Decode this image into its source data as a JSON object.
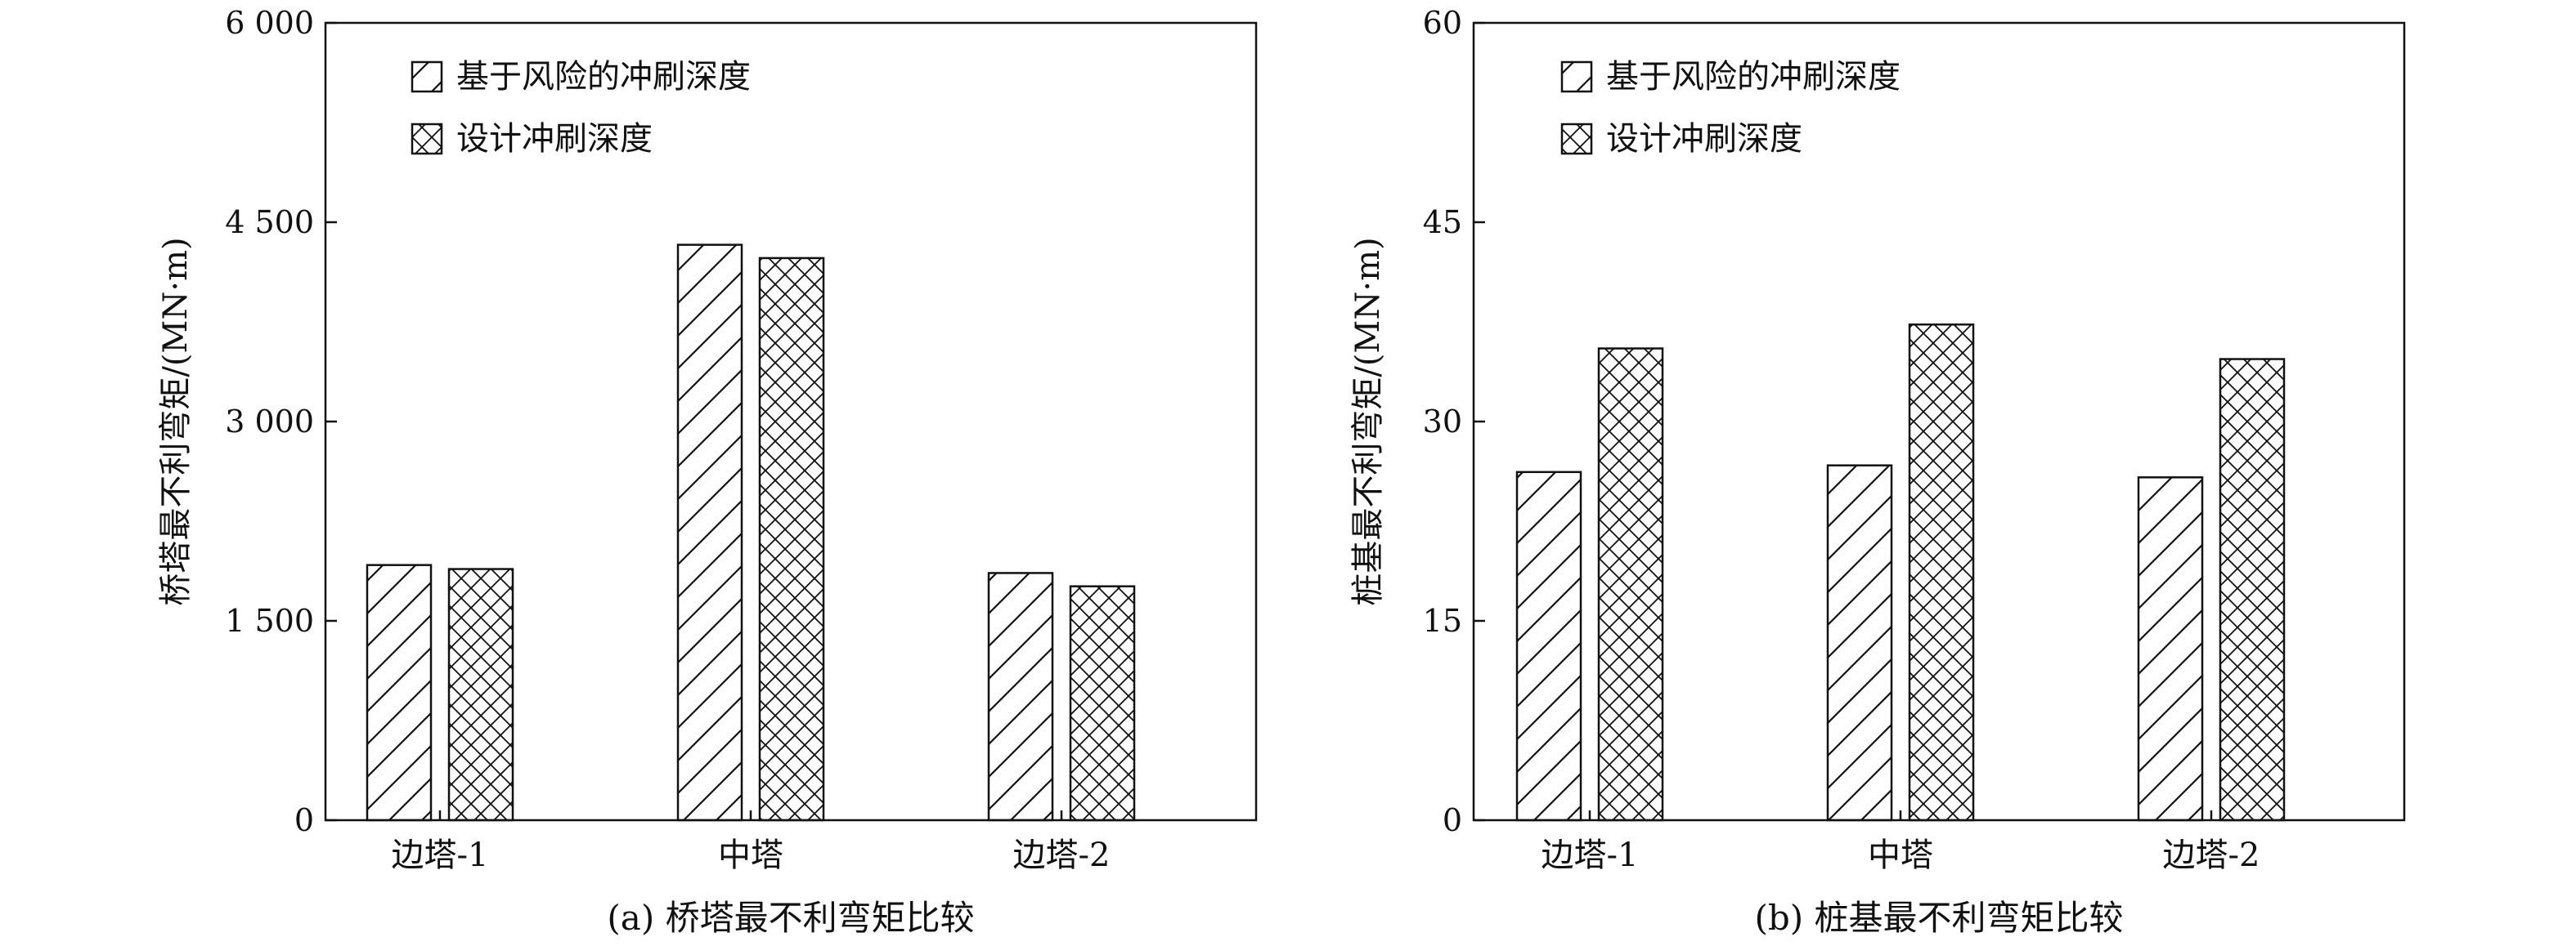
{
  "chart_data": [
    {
      "type": "bar",
      "caption": "(a) 桥塔最不利弯矩比较",
      "ylabel": "桥塔最不利弯矩/(MN·m)",
      "xlabel": "",
      "categories": [
        "边塔-1",
        "中塔",
        "边塔-2"
      ],
      "ylim": [
        0,
        6000
      ],
      "yticks": [
        0,
        1500,
        3000,
        4500,
        6000
      ],
      "ytick_labels": [
        "0",
        "1 500",
        "3 000",
        "4 500",
        "6 000"
      ],
      "grid": false,
      "legend_position": "top-left",
      "series": [
        {
          "name": "基于风险的冲刷深度",
          "pattern": "diagonal-hatch",
          "values": [
            1920,
            4330,
            1860
          ]
        },
        {
          "name": "设计冲刷深度",
          "pattern": "cross-hatch",
          "values": [
            1890,
            4230,
            1760
          ]
        }
      ]
    },
    {
      "type": "bar",
      "caption": "(b) 桩基最不利弯矩比较",
      "ylabel": "桩基最不利弯矩/(MN·m)",
      "xlabel": "",
      "categories": [
        "边塔-1",
        "中塔",
        "边塔-2"
      ],
      "ylim": [
        0,
        60
      ],
      "yticks": [
        0,
        15,
        30,
        45,
        60
      ],
      "ytick_labels": [
        "0",
        "15",
        "30",
        "45",
        "60"
      ],
      "grid": false,
      "legend_position": "top-left",
      "series": [
        {
          "name": "基于风险的冲刷深度",
          "pattern": "diagonal-hatch",
          "values": [
            26.2,
            26.7,
            25.8
          ]
        },
        {
          "name": "设计冲刷深度",
          "pattern": "cross-hatch",
          "values": [
            35.5,
            37.3,
            34.7
          ]
        }
      ]
    }
  ]
}
